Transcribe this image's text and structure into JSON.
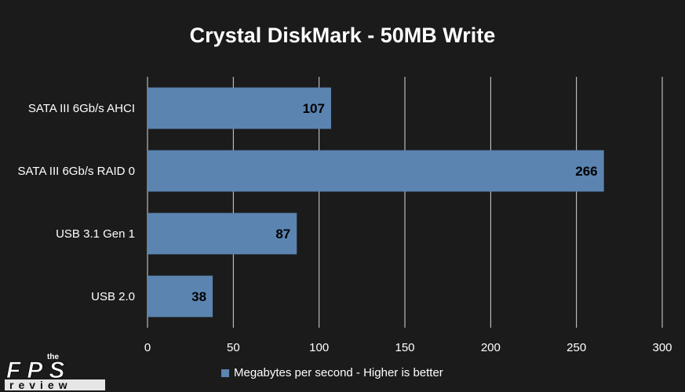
{
  "chart_data": {
    "type": "bar",
    "orientation": "horizontal",
    "title": "Crystal DiskMark - 50MB Write",
    "categories": [
      "SATA III 6Gb/s AHCI",
      "SATA III 6Gb/s RAID 0",
      "USB 3.1 Gen 1",
      "USB 2.0"
    ],
    "series": [
      {
        "name": "Megabytes per second - Higher is better",
        "values": [
          107,
          266,
          87,
          38
        ]
      }
    ],
    "xlim": [
      0,
      300
    ],
    "xticks": [
      0,
      50,
      100,
      150,
      200,
      250,
      300
    ],
    "grid": true,
    "legend_position": "bottom",
    "data_labels": true
  },
  "colors": {
    "background": "#1b1b1b",
    "bar": "#5b84b1",
    "grid": "#d9d9d9",
    "text": "#ffffff",
    "label": "#000000"
  },
  "logo": {
    "small_text": "the",
    "main_text": "FPS",
    "sub_text": "review"
  }
}
